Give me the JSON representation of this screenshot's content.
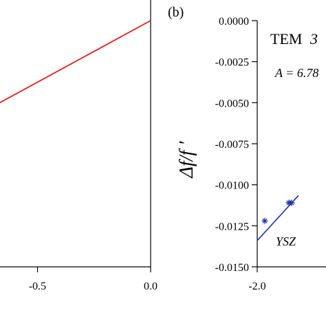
{
  "chart_data": [
    {
      "type": "line",
      "panel": "a",
      "xlim": [
        -1.0,
        0.0
      ],
      "ylim": [
        -1.0,
        0.0
      ],
      "x_ticks": [
        {
          "value": -0.5,
          "label": "-0.5"
        },
        {
          "value": 0.0,
          "label": "0.0"
        }
      ],
      "series": [
        {
          "color": "#e31a1c",
          "points": [
            {
              "x": -1.0,
              "y": -0.5
            },
            {
              "x": 0.0,
              "y": 0.0
            }
          ]
        }
      ]
    },
    {
      "type": "scatter",
      "panel_label": "(b)",
      "ylabel": "Δf/f ′",
      "xlim": [
        -2.0,
        0.0
      ],
      "ylim": [
        -0.015,
        0.0
      ],
      "x_ticks": [
        {
          "value": -2.0,
          "label": "-2.0"
        }
      ],
      "y_ticks": [
        {
          "value": 0.0,
          "label": "0.0000"
        },
        {
          "value": -0.0025,
          "label": "-0.0025"
        },
        {
          "value": -0.005,
          "label": "-0.0050"
        },
        {
          "value": -0.0075,
          "label": "-0.0075"
        },
        {
          "value": -0.01,
          "label": "-0.0100"
        },
        {
          "value": -0.0125,
          "label": "-0.0125"
        },
        {
          "value": -0.015,
          "label": "-0.0150"
        }
      ],
      "inset_title": {
        "text": "TEM",
        "num": "3"
      },
      "annotation": "A = 6.78",
      "series": [
        {
          "name": "YSZ",
          "color": "#1f2fa8",
          "marker": "asterisk",
          "points": [
            {
              "x": -1.89,
              "y": -0.0122
            },
            {
              "x": -1.54,
              "y": -0.0111
            },
            {
              "x": -1.5,
              "y": -0.0111
            }
          ],
          "fit_line": [
            {
              "x": -2.0,
              "y": -0.0134
            },
            {
              "x": -1.4,
              "y": -0.01065
            }
          ]
        }
      ]
    }
  ]
}
